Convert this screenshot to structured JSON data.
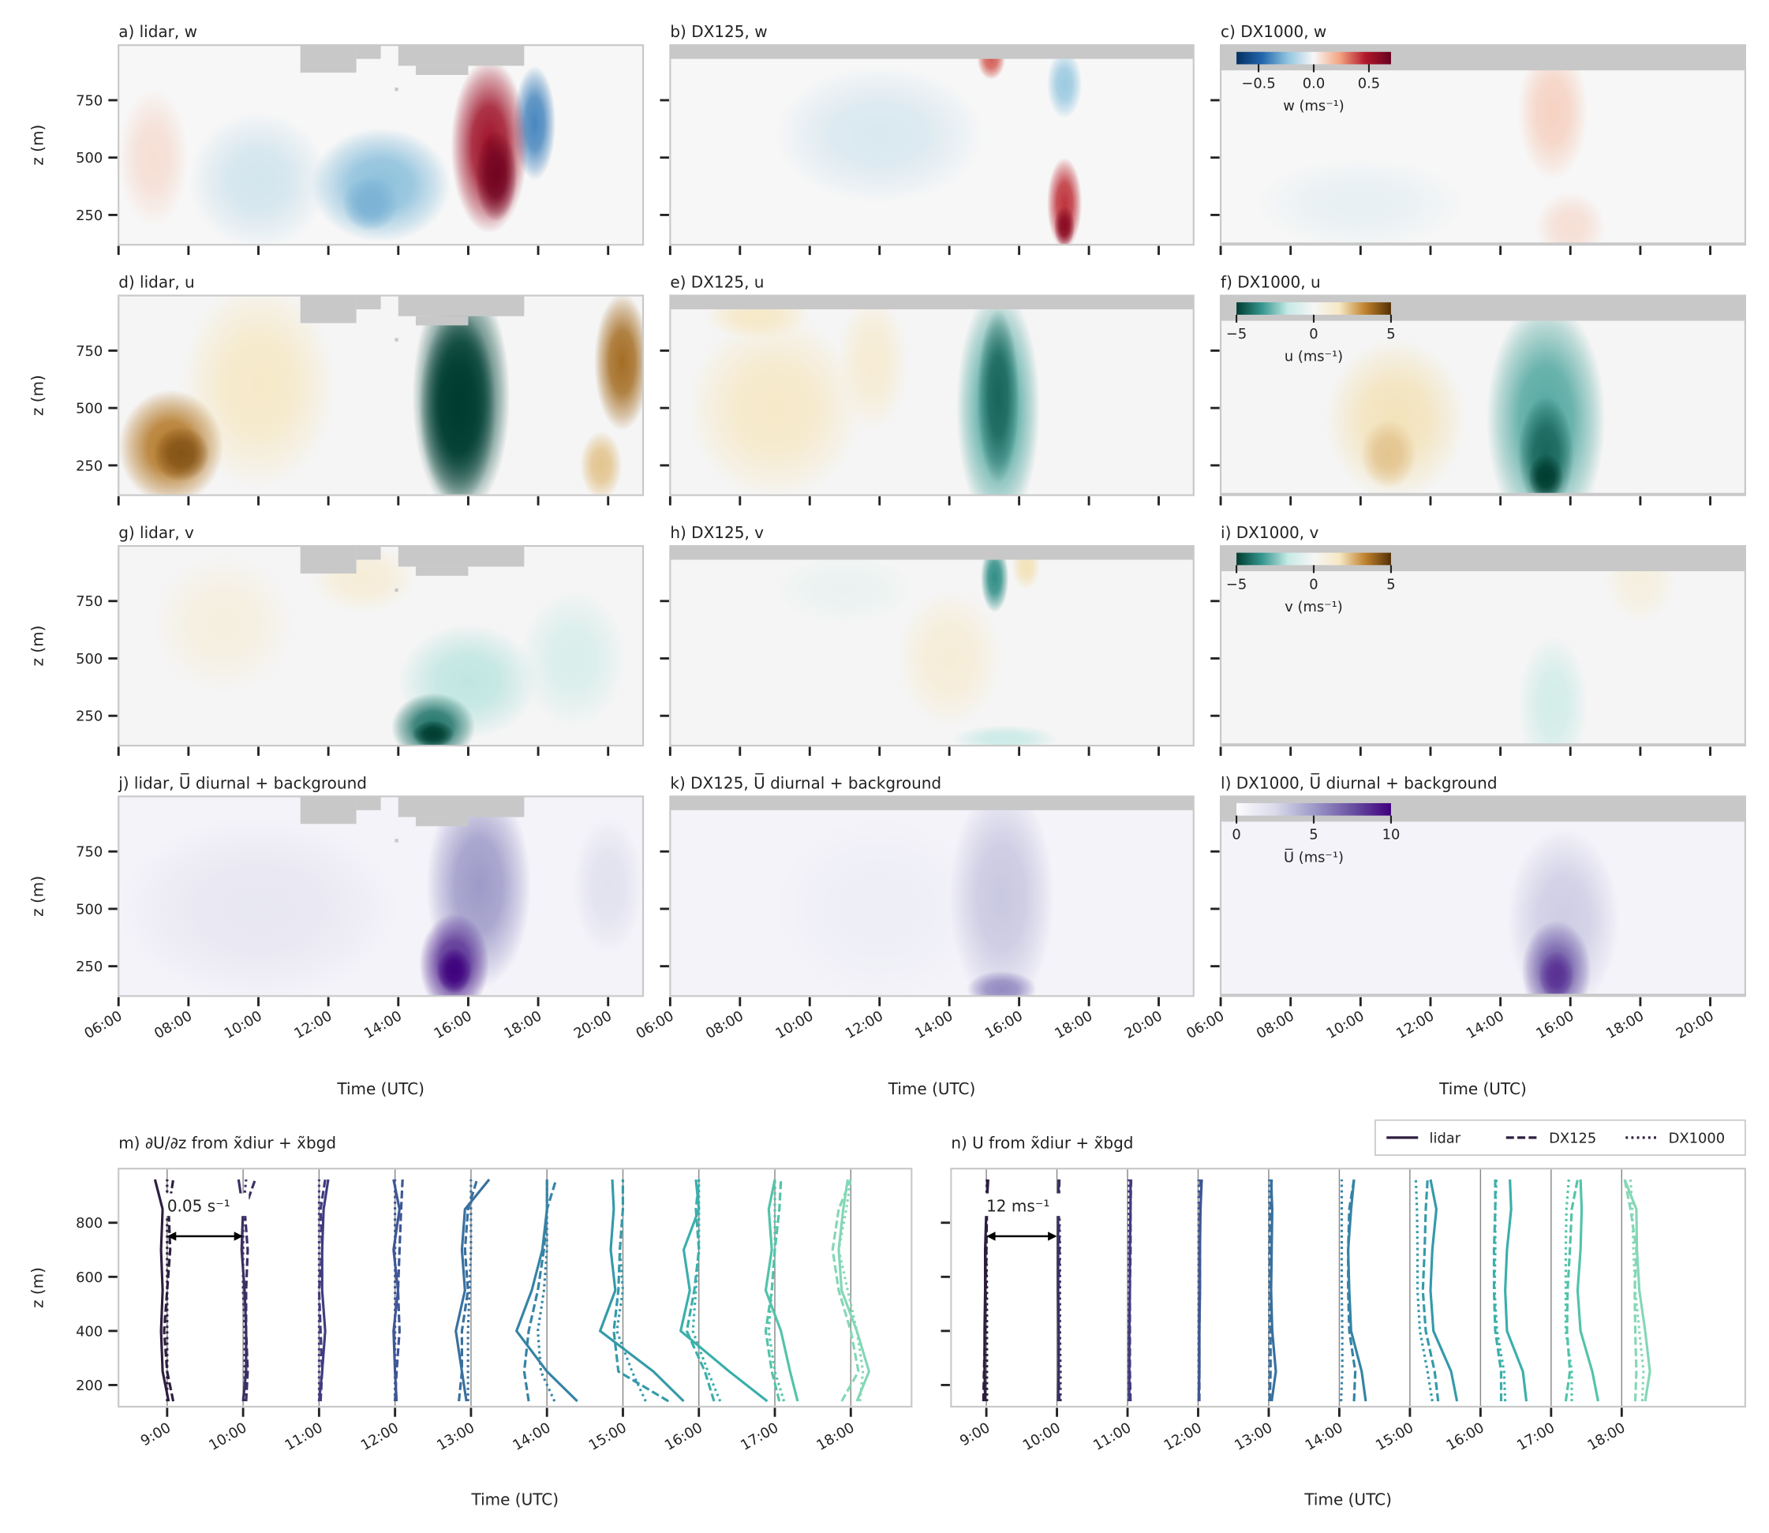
{
  "contour_axes": {
    "xlim": [
      6,
      21
    ],
    "xticks": [
      {
        "value": 6,
        "label": "06:00"
      },
      {
        "value": 8,
        "label": "08:00"
      },
      {
        "value": 10,
        "label": "10:00"
      },
      {
        "value": 12,
        "label": "12:00"
      },
      {
        "value": 14,
        "label": "14:00"
      },
      {
        "value": 16,
        "label": "16:00"
      },
      {
        "value": 18,
        "label": "18:00"
      },
      {
        "value": 20,
        "label": "20:00"
      }
    ],
    "ylim": [
      120,
      990
    ],
    "yticks": [
      250,
      500,
      750
    ],
    "xlabel": "Time (UTC)",
    "ylabel": "z (m)"
  },
  "colorbars": [
    {
      "label": "w (ms⁻¹)",
      "clim": [
        -0.7,
        0.7
      ],
      "ticks": [
        {
          "value": -0.5,
          "label": "−0.5"
        },
        {
          "value": 0,
          "label": "0.0"
        },
        0.5
      ],
      "colors": [
        "#053061",
        "#2166ac",
        "#92c5de",
        "#f7f7f7",
        "#f4a582",
        "#b2182b",
        "#67001f"
      ]
    },
    {
      "label": "u (ms⁻¹)",
      "clim": [
        -5,
        5
      ],
      "ticks": [
        {
          "value": -5,
          "label": "−5"
        },
        0,
        5
      ],
      "colors": [
        "#003c30",
        "#35978f",
        "#c7eae5",
        "#f5f5f5",
        "#f6e8c3",
        "#bf812d",
        "#543005"
      ]
    },
    {
      "label": "v (ms⁻¹)",
      "clim": [
        -5,
        5
      ],
      "ticks": [
        {
          "value": -5,
          "label": "−5"
        },
        0,
        5
      ],
      "colors": [
        "#003c30",
        "#35978f",
        "#c7eae5",
        "#f5f5f5",
        "#f6e8c3",
        "#bf812d",
        "#543005"
      ]
    },
    {
      "label": "U̅ (ms⁻¹)",
      "clim": [
        0,
        10
      ],
      "ticks": [
        0,
        5,
        10
      ],
      "colors": [
        "#fcfbfd",
        "#dadaeb",
        "#9e9ac8",
        "#6a51a3",
        "#3f007d"
      ]
    }
  ],
  "chart_data": [
    {
      "type": "contour",
      "title": "a) lidar, w"
    },
    {
      "type": "contour",
      "title": "b) DX125, w"
    },
    {
      "type": "contour",
      "title": "c) DX1000, w"
    },
    {
      "type": "contour",
      "title": "d) lidar, u"
    },
    {
      "type": "contour",
      "title": "e) DX125, u"
    },
    {
      "type": "contour",
      "title": "f) DX1000, u"
    },
    {
      "type": "contour",
      "title": "g) lidar, v"
    },
    {
      "type": "contour",
      "title": "h) DX125, v"
    },
    {
      "type": "contour",
      "title": "i) DX1000, v"
    },
    {
      "type": "contour",
      "title": "j) lidar, U̅ diurnal + background"
    },
    {
      "type": "contour",
      "title": "k) DX125, U̅ diurnal + background"
    },
    {
      "type": "contour",
      "title": "l) DX1000, U̅ diurnal + background"
    },
    {
      "type": "profile",
      "title": "m) ∂U/∂z from x̃diur + x̃bgd",
      "xlabel": "Time (UTC)",
      "ylabel": "z (m)",
      "xlim": [
        8.36,
        18.8
      ],
      "ylim": [
        120,
        1000
      ],
      "yticks": [
        200,
        400,
        600,
        800
      ],
      "xticks": [
        {
          "value": 9,
          "label": "9:00"
        },
        {
          "value": 10,
          "label": "10:00"
        },
        {
          "value": 11,
          "label": "11:00"
        },
        {
          "value": 12,
          "label": "12:00"
        },
        {
          "value": 13,
          "label": "13:00"
        },
        {
          "value": 14,
          "label": "14:00"
        },
        {
          "value": 15,
          "label": "15:00"
        },
        {
          "value": 16,
          "label": "16:00"
        },
        {
          "value": 17,
          "label": "17:00"
        },
        {
          "value": 18,
          "label": "18:00"
        }
      ],
      "scale": 0.05,
      "scale_label": "0.05 s⁻¹",
      "colors": [
        "#2d1e3e",
        "#3b2f63",
        "#403c7e",
        "#3e5695",
        "#39709f",
        "#3583a5",
        "#349aa9",
        "#3aafab",
        "#52c3a9",
        "#84d7b6"
      ],
      "z": [
        140,
        250,
        400,
        550,
        700,
        850,
        960
      ],
      "series": [
        {
          "name": "lidar",
          "dash": "solid",
          "values": [
            [
              0.001,
              -0.003,
              -0.004,
              -0.003,
              -0.004,
              -0.003,
              -0.008
            ],
            [
              0,
              0.002,
              0.002,
              0.001,
              -0.001,
              0,
              -0.003
            ],
            [
              0,
              0.002,
              0.004,
              0.002,
              0.002,
              0.003,
              0.006
            ],
            [
              0.001,
              0,
              -0.001,
              0.002,
              -0.001,
              0.003,
              -0.001
            ],
            [
              -0.003,
              -0.006,
              -0.01,
              -0.004,
              -0.006,
              -0.004,
              0.012
            ],
            [
              0.02,
              0,
              -0.02,
              -0.01,
              -0.003,
              0,
              0
            ],
            [
              0.04,
              0.02,
              -0.015,
              -0.005,
              -0.008,
              -0.006,
              -0.007
            ],
            [
              0.045,
              0.02,
              -0.012,
              -0.006,
              -0.01,
              0,
              -0.002
            ],
            [
              0.015,
              0.01,
              0.004,
              -0.006,
              -0.002,
              -0.004,
              0
            ],
            [
              0.004,
              0.012,
              0.004,
              -0.006,
              -0.008,
              -0.005,
              -0.002
            ]
          ]
        },
        {
          "name": "DX125",
          "dash": "dashed",
          "values": [
            [
              0.004,
              0,
              -0.002,
              0,
              0.002,
              0.001,
              0.004
            ],
            [
              0.002,
              0.003,
              0.002,
              0.002,
              0.003,
              0.001,
              0.008
            ],
            [
              0.001,
              0.002,
              0.001,
              0,
              0.002,
              0.001,
              0.004
            ],
            [
              0,
              0.001,
              0.003,
              0.002,
              0.003,
              0.004,
              0.005
            ],
            [
              -0.008,
              -0.006,
              -0.006,
              -0.002,
              -0.004,
              -0.002,
              0.004
            ],
            [
              -0.012,
              -0.015,
              -0.012,
              -0.006,
              -0.002,
              0,
              0.006
            ],
            [
              0.03,
              -0.003,
              -0.006,
              -0.003,
              -0.002,
              0,
              0
            ],
            [
              0.01,
              0.004,
              -0.008,
              -0.003,
              0,
              -0.002,
              0
            ],
            [
              0.003,
              -0.002,
              -0.006,
              -0.002,
              0,
              0.003,
              0.004
            ],
            [
              -0.006,
              0.005,
              0,
              -0.008,
              -0.012,
              -0.008,
              0
            ]
          ]
        },
        {
          "name": "DX1000",
          "dash": "dotted",
          "values": [
            [
              0,
              0,
              0,
              0,
              0,
              0,
              0
            ],
            [
              0.001,
              0.001,
              0.001,
              0,
              0,
              0,
              0.002
            ],
            [
              0,
              0,
              0,
              0,
              0,
              0,
              0
            ],
            [
              0,
              0,
              0,
              0,
              0,
              0,
              0
            ],
            [
              -0.002,
              -0.002,
              -0.002,
              -0.001,
              0,
              0,
              0
            ],
            [
              0.005,
              -0.004,
              -0.006,
              -0.002,
              0,
              0,
              0
            ],
            [
              0.015,
              0.006,
              -0.004,
              0,
              -0.002,
              0,
              0
            ],
            [
              0.014,
              0.006,
              -0.004,
              -0.002,
              0,
              0,
              0
            ],
            [
              0.006,
              0,
              -0.004,
              -0.002,
              0,
              0,
              0
            ],
            [
              0.006,
              0.008,
              0.004,
              -0.002,
              -0.008,
              -0.003,
              0
            ]
          ]
        }
      ]
    },
    {
      "type": "profile",
      "title": "n) U from x̃diur + x̃bgd",
      "xlabel": "Time (UTC)",
      "legend": "upper right",
      "xlim": [
        8.5,
        19.75
      ],
      "ylim": [
        120,
        1000
      ],
      "yticks": [
        200,
        400,
        600,
        800
      ],
      "xticks": [
        {
          "value": 9,
          "label": "9:00"
        },
        {
          "value": 10,
          "label": "10:00"
        },
        {
          "value": 11,
          "label": "11:00"
        },
        {
          "value": 12,
          "label": "12:00"
        },
        {
          "value": 13,
          "label": "13:00"
        },
        {
          "value": 14,
          "label": "14:00"
        },
        {
          "value": 15,
          "label": "15:00"
        },
        {
          "value": 16,
          "label": "16:00"
        },
        {
          "value": 17,
          "label": "17:00"
        },
        {
          "value": 18,
          "label": "18:00"
        }
      ],
      "scale": 12,
      "scale_label": "12 ms⁻¹",
      "colors": [
        "#2d1e3e",
        "#3b2f63",
        "#403c7e",
        "#3e5695",
        "#39709f",
        "#3583a5",
        "#349aa9",
        "#3aafab",
        "#52c3a9",
        "#84d7b6"
      ],
      "z": [
        140,
        250,
        400,
        550,
        700,
        850,
        960
      ],
      "series": [
        {
          "name": "lidar",
          "dash": "solid",
          "values": [
            [
              -0.2,
              -0.3,
              -0.3,
              -0.2,
              -0.2,
              0,
              0.3
            ],
            [
              0.2,
              0.3,
              0.3,
              0.2,
              0.2,
              0.2,
              0.3
            ],
            [
              0.3,
              0.3,
              0.3,
              0.4,
              0.4,
              0.5,
              0.5
            ],
            [
              0.1,
              0.2,
              0.2,
              0.3,
              0.3,
              0.4,
              0.6
            ],
            [
              0.5,
              1.2,
              0.6,
              0.4,
              0.5,
              0.6,
              0.4
            ],
            [
              4.5,
              3.8,
              2,
              1.7,
              1.5,
              2,
              2.5
            ],
            [
              8,
              7,
              4,
              3.5,
              3.8,
              4.5,
              3.5
            ],
            [
              7.8,
              7.2,
              4.5,
              4.2,
              4.5,
              5.2,
              5
            ],
            [
              8,
              7,
              5,
              4.5,
              5,
              5.2,
              5
            ],
            [
              4,
              4.8,
              4,
              3,
              2.6,
              2.5,
              0.5
            ]
          ]
        },
        {
          "name": "DX125",
          "dash": "dashed",
          "values": [
            [
              -0.5,
              -0.4,
              -0.2,
              -0.1,
              0,
              0.1,
              0.2
            ],
            [
              0.4,
              0.3,
              0.3,
              0.3,
              0.4,
              0.3,
              0.4
            ],
            [
              0.5,
              0.4,
              0.4,
              0.4,
              0.5,
              0.5,
              0.6
            ],
            [
              0.2,
              0.2,
              0.2,
              0.3,
              0.3,
              0.3,
              0.4
            ],
            [
              0.2,
              0.3,
              0.3,
              0.3,
              0.2,
              0.3,
              0.5
            ],
            [
              2.5,
              2.7,
              1.7,
              1.5,
              1.5,
              1.7,
              2.5
            ],
            [
              4.8,
              4.2,
              2.7,
              2.2,
              2.5,
              2.7,
              3
            ],
            [
              3.5,
              3.5,
              2.5,
              2.3,
              2.3,
              2.5,
              2.5
            ],
            [
              2.5,
              3.2,
              2.7,
              2.8,
              3.2,
              3.5,
              4.5
            ],
            [
              2.3,
              2.5,
              2.3,
              2.2,
              2.5,
              1.5,
              0.5
            ]
          ]
        },
        {
          "name": "DX1000",
          "dash": "dotted",
          "values": [
            [
              0.1,
              0.1,
              0.1,
              0.1,
              0,
              0,
              0.1
            ],
            [
              0.6,
              0.6,
              0.5,
              0.5,
              0.5,
              0.4,
              0.3
            ],
            [
              0.2,
              0.2,
              0.2,
              0.2,
              0.2,
              0.2,
              0.2
            ],
            [
              0.1,
              0.1,
              0.1,
              0.1,
              0.1,
              0.1,
              0.1
            ],
            [
              0.1,
              0.1,
              0.1,
              0.1,
              0.1,
              0.1,
              0.1
            ],
            [
              0.3,
              0.5,
              0.5,
              0.4,
              0.4,
              0.4,
              0.4
            ],
            [
              3.8,
              3,
              1.7,
              1.3,
              1.3,
              1.2,
              1
            ],
            [
              4.2,
              4,
              2.8,
              2.4,
              2.5,
              2.5,
              2.7
            ],
            [
              3.5,
              3.5,
              2.5,
              2.5,
              2.5,
              2.6,
              3
            ],
            [
              3.5,
              3.7,
              3,
              2.3,
              2,
              1.8,
              1.5
            ]
          ]
        }
      ]
    }
  ]
}
